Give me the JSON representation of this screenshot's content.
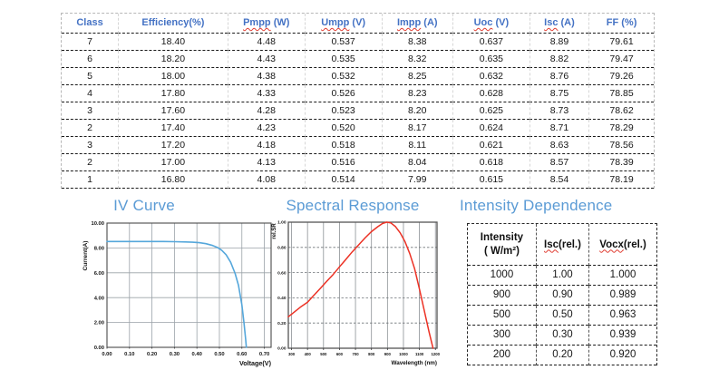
{
  "colors": {
    "table_header_blue": "#4472c4",
    "section_title_blue": "#5b9bd5",
    "iv_curve_blue": "#55a7db",
    "spectral_red": "#ec3124",
    "spellcheck_red": "#e03c31"
  },
  "performance_table": {
    "columns": [
      {
        "parts": [
          {
            "t": "Class",
            "wavy": false
          }
        ]
      },
      {
        "parts": [
          {
            "t": "Efficiency(%)",
            "wavy": false
          }
        ]
      },
      {
        "parts": [
          {
            "t": "Pmpp",
            "wavy": true
          },
          {
            "t": " (W)",
            "wavy": false
          }
        ]
      },
      {
        "parts": [
          {
            "t": "Umpp",
            "wavy": true
          },
          {
            "t": " (V)",
            "wavy": false
          }
        ]
      },
      {
        "parts": [
          {
            "t": "Impp",
            "wavy": true
          },
          {
            "t": " (A)",
            "wavy": false
          }
        ]
      },
      {
        "parts": [
          {
            "t": "Uoc",
            "wavy": true
          },
          {
            "t": " (V)",
            "wavy": false
          }
        ]
      },
      {
        "parts": [
          {
            "t": "Isc",
            "wavy": true
          },
          {
            "t": " (A)",
            "wavy": false
          }
        ]
      },
      {
        "parts": [
          {
            "t": "FF (%)",
            "wavy": false
          }
        ]
      }
    ],
    "col_widths_pct": [
      9.5,
      18.5,
      13,
      13,
      12,
      13,
      10,
      11
    ],
    "rows": [
      [
        "7",
        "18.40",
        "4.48",
        "0.537",
        "8.38",
        "0.637",
        "8.89",
        "79.61"
      ],
      [
        "6",
        "18.20",
        "4.43",
        "0.535",
        "8.32",
        "0.635",
        "8.82",
        "79.47"
      ],
      [
        "5",
        "18.00",
        "4.38",
        "0.532",
        "8.25",
        "0.632",
        "8.76",
        "79.26"
      ],
      [
        "4",
        "17.80",
        "4.33",
        "0.526",
        "8.23",
        "0.628",
        "8.75",
        "78.85"
      ],
      [
        "3",
        "17.60",
        "4.28",
        "0.523",
        "8.20",
        "0.625",
        "8.73",
        "78.62"
      ],
      [
        "2",
        "17.40",
        "4.23",
        "0.520",
        "8.17",
        "0.624",
        "8.71",
        "78.29"
      ],
      [
        "3",
        "17.20",
        "4.18",
        "0.518",
        "8.11",
        "0.621",
        "8.63",
        "78.56"
      ],
      [
        "2",
        "17.00",
        "4.13",
        "0.516",
        "8.04",
        "0.618",
        "8.57",
        "78.39"
      ],
      [
        "1",
        "16.80",
        "4.08",
        "0.514",
        "7.99",
        "0.615",
        "8.54",
        "78.19"
      ]
    ]
  },
  "chart_data": [
    {
      "id": "iv_curve",
      "type": "line",
      "title": "IV Curve",
      "xlabel": "Voltage(V)",
      "ylabel": "Current(A)",
      "xlim": [
        0,
        0.73
      ],
      "ylim": [
        0,
        10
      ],
      "xticks": [
        0,
        0.1,
        0.2,
        0.3,
        0.4,
        0.5,
        0.6,
        0.7
      ],
      "xtick_labels": [
        "0.00",
        "0.10",
        "0.20",
        "0.30",
        "0.40",
        "0.50",
        "0.60",
        "0.70"
      ],
      "yticks": [
        0,
        2,
        4,
        6,
        8,
        10
      ],
      "ytick_labels": [
        "0.00",
        "2.00",
        "4.00",
        "6.00",
        "8.00",
        "10.00"
      ],
      "grid": "on",
      "legend": "none",
      "color": "#55a7db",
      "points": [
        [
          0,
          8.52
        ],
        [
          0.05,
          8.52
        ],
        [
          0.1,
          8.52
        ],
        [
          0.15,
          8.52
        ],
        [
          0.2,
          8.52
        ],
        [
          0.25,
          8.52
        ],
        [
          0.3,
          8.5
        ],
        [
          0.35,
          8.48
        ],
        [
          0.38,
          8.46
        ],
        [
          0.41,
          8.42
        ],
        [
          0.44,
          8.34
        ],
        [
          0.47,
          8.2
        ],
        [
          0.49,
          8.05
        ],
        [
          0.51,
          7.82
        ],
        [
          0.53,
          7.45
        ],
        [
          0.55,
          6.85
        ],
        [
          0.57,
          5.95
        ],
        [
          0.585,
          5.0
        ],
        [
          0.6,
          3.4
        ],
        [
          0.61,
          1.9
        ],
        [
          0.617,
          0.6
        ],
        [
          0.62,
          0
        ]
      ]
    },
    {
      "id": "spectral_response",
      "type": "line",
      "title": "Spectral Response",
      "xlabel": "Wavelength (nm)",
      "ylabel": "rel.SR",
      "xlim": [
        280,
        1210
      ],
      "ylim": [
        0,
        1
      ],
      "xticks": [
        300,
        400,
        500,
        600,
        700,
        800,
        900,
        1000,
        1100,
        1200
      ],
      "xtick_labels": [
        "300",
        "400",
        "500",
        "600",
        "700",
        "800",
        "900",
        "1000",
        "1100",
        "1200"
      ],
      "yticks": [
        0,
        0.2,
        0.4,
        0.6,
        0.8,
        1.0
      ],
      "ytick_labels": [
        "0.00",
        "0.20",
        "0.40",
        "0.60",
        "0.80",
        "1.00"
      ],
      "grid": "on",
      "legend": "none",
      "color": "#ec3124",
      "points": [
        [
          280,
          0.25
        ],
        [
          320,
          0.29
        ],
        [
          360,
          0.33
        ],
        [
          400,
          0.365
        ],
        [
          440,
          0.42
        ],
        [
          480,
          0.475
        ],
        [
          520,
          0.53
        ],
        [
          560,
          0.585
        ],
        [
          600,
          0.645
        ],
        [
          640,
          0.705
        ],
        [
          680,
          0.765
        ],
        [
          720,
          0.82
        ],
        [
          760,
          0.875
        ],
        [
          800,
          0.925
        ],
        [
          840,
          0.965
        ],
        [
          870,
          0.99
        ],
        [
          895,
          1.0
        ],
        [
          920,
          0.995
        ],
        [
          950,
          0.965
        ],
        [
          980,
          0.915
        ],
        [
          1010,
          0.845
        ],
        [
          1040,
          0.75
        ],
        [
          1070,
          0.63
        ],
        [
          1100,
          0.47
        ],
        [
          1130,
          0.3
        ],
        [
          1160,
          0.13
        ],
        [
          1185,
          0
        ]
      ]
    }
  ],
  "intensity_table": {
    "title": "Intensity Dependence",
    "columns": [
      {
        "parts": [
          {
            "t": "Intensity",
            "wavy": false
          }
        ],
        "line2": "( W/m²)"
      },
      {
        "parts": [
          {
            "t": "Isc",
            "wavy": true
          },
          {
            "t": "(rel.)",
            "wavy": false
          }
        ]
      },
      {
        "parts": [
          {
            "t": "Vocx",
            "wavy": true
          },
          {
            "t": "(rel.)",
            "wavy": false
          }
        ]
      }
    ],
    "col_widths_pct": [
      36,
      28,
      36
    ],
    "rows": [
      [
        "1000",
        "1.00",
        "1.000"
      ],
      [
        "900",
        "0.90",
        "0.989"
      ],
      [
        "500",
        "0.50",
        "0.963"
      ],
      [
        "300",
        "0.30",
        "0.939"
      ],
      [
        "200",
        "0.20",
        "0.920"
      ]
    ]
  }
}
